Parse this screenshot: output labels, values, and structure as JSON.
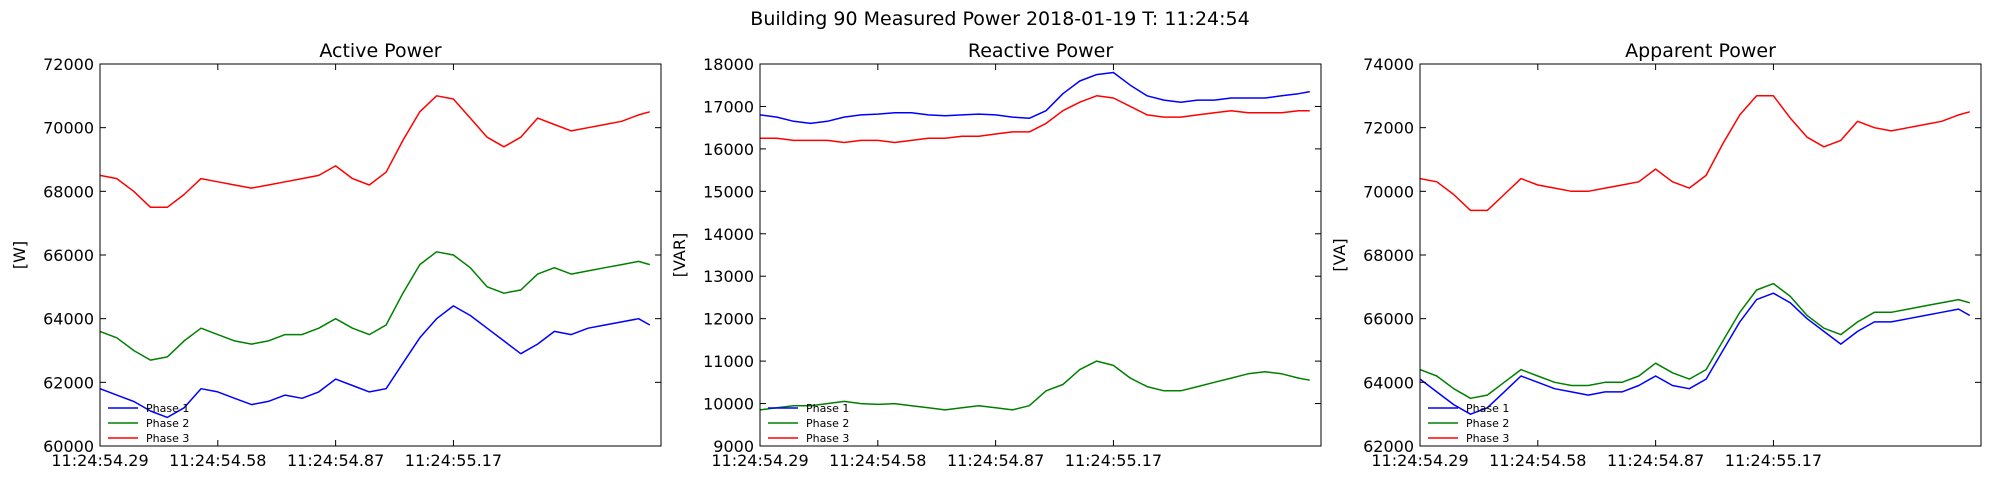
{
  "figure": {
    "suptitle": "Building 90 Measured Power 2018-01-19 T: 11:24:54"
  },
  "colors": {
    "Phase 1": "#0000ff",
    "Phase 2": "#008000",
    "Phase 3": "#ff0000"
  },
  "chart_data": [
    {
      "type": "line",
      "title": "Active Power",
      "ylabel": "[W]",
      "xlim": [
        0,
        100
      ],
      "xticks": [
        0,
        21,
        42,
        63
      ],
      "xticklabels": [
        "11:24:54.29",
        "11:24:54.58",
        "11:24:54.87",
        "11:24:55.17"
      ],
      "ylim": [
        60000,
        72000
      ],
      "yticks": [
        60000,
        62000,
        64000,
        66000,
        68000,
        70000,
        72000
      ],
      "yticklabels": [
        "60000",
        "62000",
        "64000",
        "66000",
        "68000",
        "70000",
        "72000"
      ],
      "legend": "lower-left",
      "series": [
        {
          "name": "Phase 1",
          "x": [
            0,
            3,
            6,
            9,
            12,
            15,
            18,
            21,
            24,
            27,
            30,
            33,
            36,
            39,
            42,
            45,
            48,
            51,
            54,
            57,
            60,
            63,
            66,
            69,
            72,
            75,
            78,
            81,
            84,
            87,
            90,
            93,
            96,
            98
          ],
          "y": [
            61800,
            61600,
            61400,
            61100,
            60900,
            61200,
            61800,
            61700,
            61500,
            61300,
            61400,
            61600,
            61500,
            61700,
            62100,
            61900,
            61700,
            61800,
            62600,
            63400,
            64000,
            64400,
            64100,
            63700,
            63300,
            62900,
            63200,
            63600,
            63500,
            63700,
            63800,
            63900,
            64000,
            63800
          ]
        },
        {
          "name": "Phase 2",
          "x": [
            0,
            3,
            6,
            9,
            12,
            15,
            18,
            21,
            24,
            27,
            30,
            33,
            36,
            39,
            42,
            45,
            48,
            51,
            54,
            57,
            60,
            63,
            66,
            69,
            72,
            75,
            78,
            81,
            84,
            87,
            90,
            93,
            96,
            98
          ],
          "y": [
            63600,
            63400,
            63000,
            62700,
            62800,
            63300,
            63700,
            63500,
            63300,
            63200,
            63300,
            63500,
            63500,
            63700,
            64000,
            63700,
            63500,
            63800,
            64800,
            65700,
            66100,
            66000,
            65600,
            65000,
            64800,
            64900,
            65400,
            65600,
            65400,
            65500,
            65600,
            65700,
            65800,
            65700
          ]
        },
        {
          "name": "Phase 3",
          "x": [
            0,
            3,
            6,
            9,
            12,
            15,
            18,
            21,
            24,
            27,
            30,
            33,
            36,
            39,
            42,
            45,
            48,
            51,
            54,
            57,
            60,
            63,
            66,
            69,
            72,
            75,
            78,
            81,
            84,
            87,
            90,
            93,
            96,
            98
          ],
          "y": [
            68500,
            68400,
            68000,
            67500,
            67500,
            67900,
            68400,
            68300,
            68200,
            68100,
            68200,
            68300,
            68400,
            68500,
            68800,
            68400,
            68200,
            68600,
            69600,
            70500,
            71000,
            70900,
            70300,
            69700,
            69400,
            69700,
            70300,
            70100,
            69900,
            70000,
            70100,
            70200,
            70400,
            70500
          ]
        }
      ]
    },
    {
      "type": "line",
      "title": "Reactive Power",
      "ylabel": "[VAR]",
      "xlim": [
        0,
        100
      ],
      "xticks": [
        0,
        21,
        42,
        63
      ],
      "xticklabels": [
        "11:24:54.29",
        "11:24:54.58",
        "11:24:54.87",
        "11:24:55.17"
      ],
      "ylim": [
        9000,
        18000
      ],
      "yticks": [
        9000,
        10000,
        11000,
        12000,
        13000,
        14000,
        15000,
        16000,
        17000,
        18000
      ],
      "yticklabels": [
        "9000",
        "10000",
        "11000",
        "12000",
        "13000",
        "14000",
        "15000",
        "16000",
        "17000",
        "18000"
      ],
      "legend": "lower-left",
      "series": [
        {
          "name": "Phase 1",
          "x": [
            0,
            3,
            6,
            9,
            12,
            15,
            18,
            21,
            24,
            27,
            30,
            33,
            36,
            39,
            42,
            45,
            48,
            51,
            54,
            57,
            60,
            63,
            66,
            69,
            72,
            75,
            78,
            81,
            84,
            87,
            90,
            93,
            96,
            98
          ],
          "y": [
            16800,
            16750,
            16650,
            16600,
            16650,
            16750,
            16800,
            16820,
            16850,
            16850,
            16800,
            16780,
            16800,
            16820,
            16800,
            16750,
            16720,
            16900,
            17300,
            17600,
            17750,
            17800,
            17500,
            17250,
            17150,
            17100,
            17150,
            17150,
            17200,
            17200,
            17200,
            17250,
            17300,
            17350
          ]
        },
        {
          "name": "Phase 2",
          "x": [
            0,
            3,
            6,
            9,
            12,
            15,
            18,
            21,
            24,
            27,
            30,
            33,
            36,
            39,
            42,
            45,
            48,
            51,
            54,
            57,
            60,
            63,
            66,
            69,
            72,
            75,
            78,
            81,
            84,
            87,
            90,
            93,
            96,
            98
          ],
          "y": [
            9850,
            9900,
            9950,
            9950,
            10000,
            10050,
            10000,
            9980,
            10000,
            9950,
            9900,
            9850,
            9900,
            9950,
            9900,
            9850,
            9950,
            10300,
            10450,
            10800,
            11000,
            10900,
            10600,
            10400,
            10300,
            10300,
            10400,
            10500,
            10600,
            10700,
            10750,
            10700,
            10600,
            10550
          ]
        },
        {
          "name": "Phase 3",
          "x": [
            0,
            3,
            6,
            9,
            12,
            15,
            18,
            21,
            24,
            27,
            30,
            33,
            36,
            39,
            42,
            45,
            48,
            51,
            54,
            57,
            60,
            63,
            66,
            69,
            72,
            75,
            78,
            81,
            84,
            87,
            90,
            93,
            96,
            98
          ],
          "y": [
            16250,
            16250,
            16200,
            16200,
            16200,
            16150,
            16200,
            16200,
            16150,
            16200,
            16250,
            16250,
            16300,
            16300,
            16350,
            16400,
            16400,
            16600,
            16900,
            17100,
            17250,
            17200,
            17000,
            16800,
            16750,
            16750,
            16800,
            16850,
            16900,
            16850,
            16850,
            16850,
            16900,
            16900
          ]
        }
      ]
    },
    {
      "type": "line",
      "title": "Apparent Power",
      "ylabel": "[VA]",
      "xlim": [
        0,
        100
      ],
      "xticks": [
        0,
        21,
        42,
        63
      ],
      "xticklabels": [
        "11:24:54.29",
        "11:24:54.58",
        "11:24:54.87",
        "11:24:55.17"
      ],
      "ylim": [
        62000,
        74000
      ],
      "yticks": [
        62000,
        64000,
        66000,
        68000,
        70000,
        72000,
        74000
      ],
      "yticklabels": [
        "62000",
        "64000",
        "66000",
        "68000",
        "70000",
        "72000",
        "74000"
      ],
      "legend": "lower-left",
      "series": [
        {
          "name": "Phase 1",
          "x": [
            0,
            3,
            6,
            9,
            12,
            15,
            18,
            21,
            24,
            27,
            30,
            33,
            36,
            39,
            42,
            45,
            48,
            51,
            54,
            57,
            60,
            63,
            66,
            69,
            72,
            75,
            78,
            81,
            84,
            87,
            90,
            93,
            96,
            98
          ],
          "y": [
            64100,
            63700,
            63300,
            63000,
            63200,
            63700,
            64200,
            64000,
            63800,
            63700,
            63600,
            63700,
            63700,
            63900,
            64200,
            63900,
            63800,
            64100,
            65000,
            65900,
            66600,
            66800,
            66500,
            66000,
            65600,
            65200,
            65600,
            65900,
            65900,
            66000,
            66100,
            66200,
            66300,
            66100
          ]
        },
        {
          "name": "Phase 2",
          "x": [
            0,
            3,
            6,
            9,
            12,
            15,
            18,
            21,
            24,
            27,
            30,
            33,
            36,
            39,
            42,
            45,
            48,
            51,
            54,
            57,
            60,
            63,
            66,
            69,
            72,
            75,
            78,
            81,
            84,
            87,
            90,
            93,
            96,
            98
          ],
          "y": [
            64400,
            64200,
            63800,
            63500,
            63600,
            64000,
            64400,
            64200,
            64000,
            63900,
            63900,
            64000,
            64000,
            64200,
            64600,
            64300,
            64100,
            64400,
            65300,
            66200,
            66900,
            67100,
            66700,
            66100,
            65700,
            65500,
            65900,
            66200,
            66200,
            66300,
            66400,
            66500,
            66600,
            66500
          ]
        },
        {
          "name": "Phase 3",
          "x": [
            0,
            3,
            6,
            9,
            12,
            15,
            18,
            21,
            24,
            27,
            30,
            33,
            36,
            39,
            42,
            45,
            48,
            51,
            54,
            57,
            60,
            63,
            66,
            69,
            72,
            75,
            78,
            81,
            84,
            87,
            90,
            93,
            96,
            98
          ],
          "y": [
            70400,
            70300,
            69900,
            69400,
            69400,
            69900,
            70400,
            70200,
            70100,
            70000,
            70000,
            70100,
            70200,
            70300,
            70700,
            70300,
            70100,
            70500,
            71500,
            72400,
            73000,
            73000,
            72300,
            71700,
            71400,
            71600,
            72200,
            72000,
            71900,
            72000,
            72100,
            72200,
            72400,
            72500
          ]
        }
      ]
    }
  ]
}
